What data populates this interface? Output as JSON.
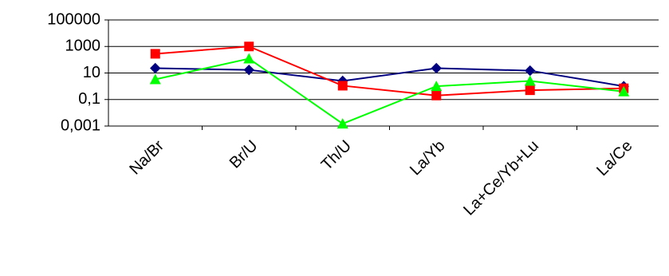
{
  "chart_data": {
    "type": "line",
    "categories": [
      "Na/Br",
      "Br/U",
      "Th/U",
      "La/Yb",
      "La+Ce/Yb+Lu",
      "La/Ce"
    ],
    "series": [
      {
        "color": "#000080",
        "marker": "diamond",
        "values": [
          23,
          17,
          2.5,
          23,
          15,
          1
        ]
      },
      {
        "color": "#ff0000",
        "marker": "square",
        "values": [
          280,
          1000,
          1.1,
          0.2,
          0.5,
          0.7
        ]
      },
      {
        "color": "#00ff00",
        "marker": "triangle",
        "values": [
          3.3,
          120,
          0.0015,
          1,
          2.5,
          0.4
        ]
      }
    ],
    "ylim": [
      0.001,
      100000
    ],
    "yscale": "log",
    "yticks": [
      {
        "value": 0.001,
        "label": "0,001"
      },
      {
        "value": 0.1,
        "label": "0,1"
      },
      10,
      1000,
      100000
    ],
    "grid": true
  }
}
